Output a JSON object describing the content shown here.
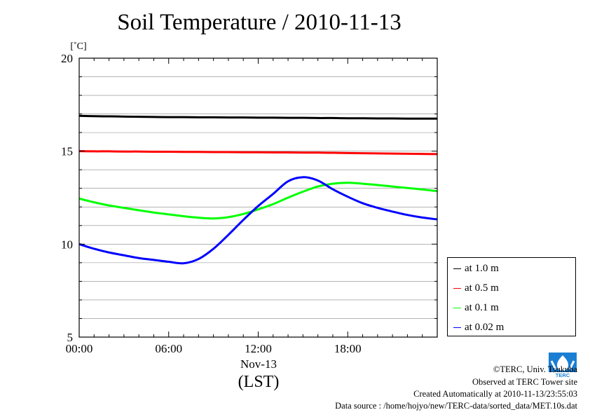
{
  "title": "Soil Temperature / 2010-11-13",
  "chart_data": {
    "type": "line",
    "title": "Soil Temperature / 2010-11-13",
    "ylabel": "[˚C]",
    "xlabel": "(LST)",
    "x_date_label": "Nov-13",
    "ylim": [
      5,
      20
    ],
    "xlim": [
      0,
      24
    ],
    "y_ticks": [
      5,
      10,
      15,
      20
    ],
    "y_tick_labels": [
      "5",
      "10",
      "15",
      "20"
    ],
    "x_ticks": [
      0,
      6,
      12,
      18
    ],
    "x_tick_labels": [
      "00:00",
      "06:00",
      "12:00",
      "18:00"
    ],
    "grid": true,
    "legend_position": "right",
    "x": [
      0,
      1,
      2,
      3,
      4,
      5,
      6,
      7,
      8,
      9,
      10,
      11,
      12,
      13,
      14,
      15,
      16,
      17,
      18,
      19,
      20,
      21,
      22,
      23,
      24
    ],
    "series": [
      {
        "name": "at 1.0 m",
        "color": "#000000",
        "values": [
          16.9,
          16.88,
          16.87,
          16.86,
          16.85,
          16.84,
          16.83,
          16.83,
          16.82,
          16.82,
          16.81,
          16.81,
          16.8,
          16.8,
          16.79,
          16.79,
          16.78,
          16.78,
          16.77,
          16.77,
          16.76,
          16.76,
          16.75,
          16.75,
          16.75
        ]
      },
      {
        "name": "at 0.5 m",
        "color": "#ff0000",
        "values": [
          15.0,
          14.99,
          14.99,
          14.98,
          14.98,
          14.97,
          14.97,
          14.96,
          14.96,
          14.95,
          14.95,
          14.94,
          14.94,
          14.93,
          14.93,
          14.92,
          14.92,
          14.91,
          14.9,
          14.89,
          14.88,
          14.87,
          14.86,
          14.85,
          14.84
        ]
      },
      {
        "name": "at 0.1 m",
        "color": "#00ff00",
        "values": [
          12.45,
          12.25,
          12.08,
          11.95,
          11.82,
          11.7,
          11.6,
          11.5,
          11.42,
          11.38,
          11.45,
          11.62,
          11.87,
          12.15,
          12.5,
          12.82,
          13.1,
          13.25,
          13.3,
          13.25,
          13.18,
          13.1,
          13.02,
          12.94,
          12.85
        ]
      },
      {
        "name": "at 0.02 m",
        "color": "#0000ff",
        "values": [
          10.0,
          9.75,
          9.55,
          9.4,
          9.25,
          9.15,
          9.05,
          8.97,
          9.2,
          9.75,
          10.5,
          11.3,
          12.05,
          12.7,
          13.38,
          13.6,
          13.42,
          12.95,
          12.55,
          12.2,
          11.95,
          11.75,
          11.57,
          11.43,
          11.33
        ]
      }
    ]
  },
  "credits": {
    "copyright": "©TERC, Univ. Tsukuba",
    "observed": "Observed at TERC Tower site",
    "created": "Created Automatically at 2010-11-13/23:55:03",
    "source": "Data source : /home/hojyo/new/TERC-data/sorted_data/MET.10s.dat"
  },
  "logo_text": "TERC",
  "colors": {
    "logo_blue": "#1a7fd4",
    "grid": "#888888"
  }
}
